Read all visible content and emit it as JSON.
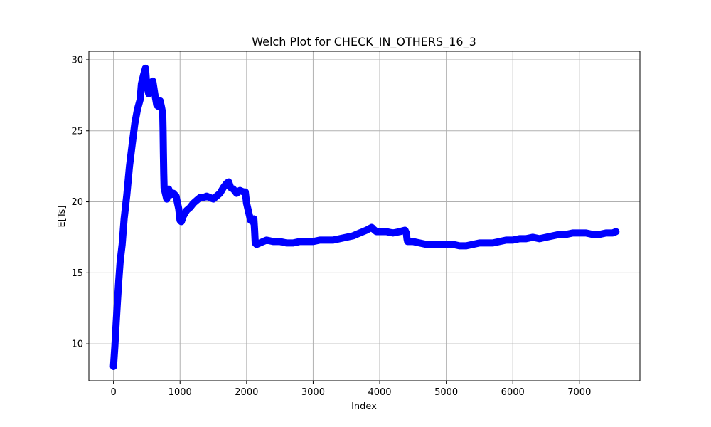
{
  "chart_data": {
    "type": "scatter",
    "title": "Welch Plot for CHECK_IN_OTHERS_16_3",
    "xlabel": "Index",
    "ylabel": "E[Ts]",
    "xlim": [
      -370,
      7910
    ],
    "ylim": [
      7.4,
      30.6
    ],
    "xticks": [
      0,
      1000,
      2000,
      3000,
      4000,
      5000,
      6000,
      7000
    ],
    "yticks": [
      10,
      15,
      20,
      25,
      30
    ],
    "grid": true,
    "marker_color": "#0000ff",
    "series": [
      {
        "marker": "circle",
        "connected": true,
        "x": [
          0,
          20,
          40,
          60,
          80,
          100,
          130,
          160,
          200,
          240,
          280,
          320,
          360,
          400,
          420,
          450,
          480,
          500,
          530,
          560,
          590,
          620,
          650,
          680,
          700,
          720,
          740,
          745,
          750,
          755,
          760,
          780,
          800,
          830,
          860,
          900,
          940,
          980,
          1000,
          1020,
          1050,
          1100,
          1150,
          1200,
          1250,
          1300,
          1350,
          1400,
          1450,
          1500,
          1550,
          1600,
          1650,
          1700,
          1730,
          1760,
          1800,
          1850,
          1900,
          1950,
          1980,
          2000,
          2030,
          2060,
          2090,
          2110,
          2120,
          2130,
          2150,
          2200,
          2250,
          2300,
          2400,
          2500,
          2600,
          2700,
          2800,
          2900,
          3000,
          3100,
          3200,
          3300,
          3400,
          3500,
          3600,
          3700,
          3800,
          3880,
          3900,
          3950,
          4000,
          4100,
          4200,
          4300,
          4380,
          4400,
          4410,
          4420,
          4500,
          4600,
          4700,
          4800,
          4900,
          5000,
          5100,
          5200,
          5300,
          5400,
          5500,
          5600,
          5700,
          5800,
          5900,
          6000,
          6100,
          6200,
          6300,
          6400,
          6500,
          6600,
          6700,
          6800,
          6900,
          7000,
          7100,
          7200,
          7300,
          7400,
          7500,
          7550
        ],
        "y": [
          8.4,
          9.8,
          11.5,
          13.0,
          14.5,
          15.8,
          17.0,
          18.8,
          20.5,
          22.5,
          24.0,
          25.5,
          26.5,
          27.2,
          28.3,
          28.9,
          29.4,
          28.2,
          27.6,
          28.3,
          28.5,
          27.6,
          26.8,
          26.7,
          27.1,
          26.7,
          26.2,
          25.0,
          23.5,
          22.0,
          21.0,
          20.6,
          20.2,
          20.9,
          20.5,
          20.6,
          20.4,
          19.5,
          18.7,
          18.6,
          19.0,
          19.4,
          19.6,
          19.9,
          20.1,
          20.3,
          20.3,
          20.4,
          20.3,
          20.2,
          20.4,
          20.6,
          21.0,
          21.3,
          21.4,
          21.0,
          20.9,
          20.6,
          20.8,
          20.7,
          20.7,
          19.9,
          19.3,
          18.7,
          18.6,
          18.8,
          18.0,
          17.1,
          17.0,
          17.1,
          17.2,
          17.3,
          17.2,
          17.2,
          17.1,
          17.1,
          17.2,
          17.2,
          17.2,
          17.3,
          17.3,
          17.3,
          17.4,
          17.5,
          17.6,
          17.8,
          18.0,
          18.2,
          18.1,
          17.9,
          17.9,
          17.9,
          17.8,
          17.9,
          18.0,
          17.8,
          17.4,
          17.2,
          17.2,
          17.1,
          17.0,
          17.0,
          17.0,
          17.0,
          17.0,
          16.9,
          16.9,
          17.0,
          17.1,
          17.1,
          17.1,
          17.2,
          17.3,
          17.3,
          17.4,
          17.4,
          17.5,
          17.4,
          17.5,
          17.6,
          17.7,
          17.7,
          17.8,
          17.8,
          17.8,
          17.7,
          17.7,
          17.8,
          17.8,
          17.9
        ]
      }
    ]
  }
}
